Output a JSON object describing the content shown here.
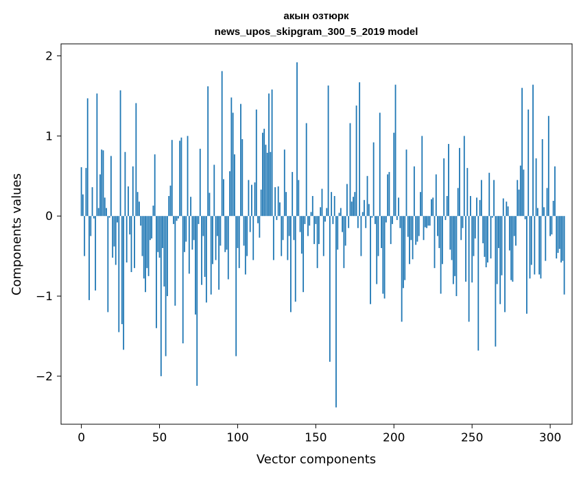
{
  "chart_data": {
    "type": "bar",
    "title_line1": "акын озтюрк",
    "title_line2": "news_upos_skipgram_300_5_2019 model",
    "xlabel": "Vector components",
    "ylabel": "Components values",
    "xlim": [
      -13,
      314
    ],
    "ylim": [
      -2.6,
      2.15
    ],
    "xticks": [
      0,
      50,
      100,
      150,
      200,
      250,
      300
    ],
    "yticks": [
      2,
      1,
      0,
      -1,
      -2
    ],
    "ytick_labels": [
      "2",
      "1",
      "0",
      "−1",
      "−2"
    ],
    "bar_color": "#1f77b4",
    "values": [
      0.61,
      0.27,
      -0.5,
      0.6,
      1.47,
      -1.05,
      -0.25,
      0.36,
      -0.03,
      -0.93,
      1.53,
      0.1,
      0.52,
      0.83,
      0.82,
      0.23,
      0.1,
      -1.2,
      -0.02,
      0.75,
      -0.52,
      -0.38,
      -0.61,
      -0.08,
      -1.45,
      1.57,
      -1.35,
      -1.67,
      0.8,
      -0.58,
      0.37,
      -0.23,
      -0.7,
      0.62,
      -0.65,
      1.41,
      0.3,
      0.18,
      -0.12,
      -0.5,
      -0.78,
      -0.95,
      -0.65,
      -0.75,
      -0.3,
      -0.28,
      0.13,
      0.77,
      -1.4,
      -0.45,
      -0.52,
      -2.0,
      -0.4,
      -0.88,
      -1.75,
      -1.0,
      0.25,
      0.38,
      0.95,
      -0.1,
      -1.12,
      -0.06,
      -0.03,
      0.94,
      0.98,
      -1.59,
      -0.45,
      -0.32,
      1.0,
      -0.72,
      0.24,
      -0.42,
      -0.3,
      -1.23,
      -2.12,
      -0.1,
      0.84,
      -0.86,
      -0.25,
      -0.76,
      -1.08,
      1.62,
      0.29,
      -0.98,
      -0.6,
      0.64,
      -0.55,
      -0.25,
      -0.92,
      -0.37,
      1.81,
      0.46,
      -0.45,
      -0.42,
      -0.79,
      0.56,
      1.48,
      1.29,
      0.77,
      -1.75,
      -0.4,
      -0.65,
      1.4,
      0.96,
      -0.37,
      -0.73,
      -0.5,
      0.45,
      -0.2,
      0.39,
      -0.55,
      0.42,
      1.33,
      -0.09,
      -0.27,
      0.33,
      1.04,
      1.09,
      0.89,
      0.79,
      1.53,
      0.8,
      1.58,
      -0.55,
      0.36,
      -0.05,
      0.37,
      0.17,
      -0.5,
      -0.3,
      0.83,
      0.3,
      -0.55,
      -0.25,
      -1.2,
      0.55,
      -0.3,
      -1.07,
      1.92,
      0.45,
      -0.2,
      -0.47,
      -0.95,
      -0.1,
      1.16,
      -0.25,
      -0.12,
      0.05,
      0.25,
      -0.35,
      -0.1,
      -0.65,
      -0.35,
      0.11,
      0.34,
      -0.5,
      -0.07,
      0.1,
      1.63,
      -1.82,
      0.3,
      -0.1,
      0.25,
      -2.39,
      -0.42,
      0.04,
      0.1,
      -0.2,
      -0.65,
      -0.37,
      0.4,
      -0.15,
      1.16,
      0.18,
      0.24,
      0.3,
      1.38,
      -0.15,
      1.67,
      -0.5,
      0.05,
      0.2,
      -0.15,
      0.5,
      0.15,
      -1.1,
      -0.02,
      0.92,
      -0.1,
      -0.85,
      -0.5,
      1.29,
      -0.4,
      -0.97,
      -1.03,
      -0.08,
      0.52,
      0.55,
      -0.35,
      -0.1,
      1.04,
      1.64,
      -0.05,
      0.23,
      -0.15,
      -1.32,
      -0.9,
      -0.8,
      0.83,
      -0.26,
      -0.6,
      -0.3,
      -0.54,
      0.62,
      -0.36,
      -0.32,
      -0.25,
      0.3,
      1.0,
      -0.3,
      -0.14,
      -0.15,
      -0.12,
      -0.12,
      0.21,
      0.23,
      -0.65,
      0.52,
      -0.25,
      -0.4,
      -0.97,
      -0.6,
      0.72,
      -0.05,
      0.25,
      0.9,
      -0.42,
      -0.55,
      -0.85,
      -0.75,
      -1.0,
      0.35,
      0.85,
      -0.3,
      -0.15,
      1.0,
      -0.82,
      0.6,
      -1.32,
      0.25,
      -0.83,
      -0.5,
      -0.28,
      0.23,
      -1.68,
      0.2,
      0.45,
      -0.34,
      -0.51,
      -0.64,
      -0.58,
      0.54,
      -0.53,
      -0.02,
      0.45,
      -1.63,
      -0.85,
      -0.4,
      -1.1,
      -0.74,
      0.22,
      -1.2,
      0.18,
      0.12,
      -0.43,
      -0.8,
      -0.82,
      -0.25,
      -0.37,
      0.45,
      0.33,
      0.63,
      1.6,
      0.58,
      -0.04,
      -1.22,
      1.33,
      -0.78,
      -0.61,
      1.64,
      -0.73,
      0.72,
      0.1,
      -0.73,
      -0.78,
      0.96,
      0.11,
      -0.56,
      0.35,
      1.25,
      -0.25,
      -0.23,
      0.19,
      0.62,
      -0.53,
      -0.46,
      -0.41,
      -0.58,
      -0.56,
      -0.98
    ]
  }
}
